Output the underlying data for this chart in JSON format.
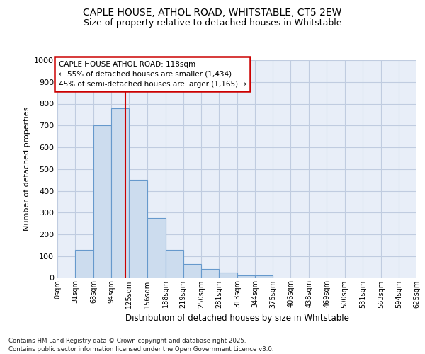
{
  "title": "CAPLE HOUSE, ATHOL ROAD, WHITSTABLE, CT5 2EW",
  "subtitle": "Size of property relative to detached houses in Whitstable",
  "xlabel": "Distribution of detached houses by size in Whitstable",
  "ylabel": "Number of detached properties",
  "bar_heights": [
    0,
    130,
    700,
    780,
    450,
    275,
    130,
    65,
    40,
    25,
    10,
    10,
    0,
    0,
    0,
    0,
    0,
    0,
    0,
    0
  ],
  "bin_edges": [
    0,
    31,
    63,
    94,
    125,
    156,
    188,
    219,
    250,
    281,
    313,
    344,
    375,
    406,
    438,
    469,
    500,
    531,
    563,
    594,
    625
  ],
  "bin_labels": [
    "0sqm",
    "31sqm",
    "63sqm",
    "94sqm",
    "125sqm",
    "156sqm",
    "188sqm",
    "219sqm",
    "250sqm",
    "281sqm",
    "313sqm",
    "344sqm",
    "375sqm",
    "406sqm",
    "438sqm",
    "469sqm",
    "500sqm",
    "531sqm",
    "563sqm",
    "594sqm",
    "625sqm"
  ],
  "bar_color": "#ccdcee",
  "bar_edge_color": "#6699cc",
  "bg_color": "#e8eef8",
  "grid_color": "#c0cce0",
  "vline_x": 118,
  "vline_color": "#cc0000",
  "annotation_line1": "CAPLE HOUSE ATHOL ROAD: 118sqm",
  "annotation_line2": "← 55% of detached houses are smaller (1,434)",
  "annotation_line3": "45% of semi-detached houses are larger (1,165) →",
  "ylim": [
    0,
    1000
  ],
  "yticks": [
    0,
    100,
    200,
    300,
    400,
    500,
    600,
    700,
    800,
    900,
    1000
  ],
  "footnote": "Contains HM Land Registry data © Crown copyright and database right 2025.\nContains public sector information licensed under the Open Government Licence v3.0."
}
